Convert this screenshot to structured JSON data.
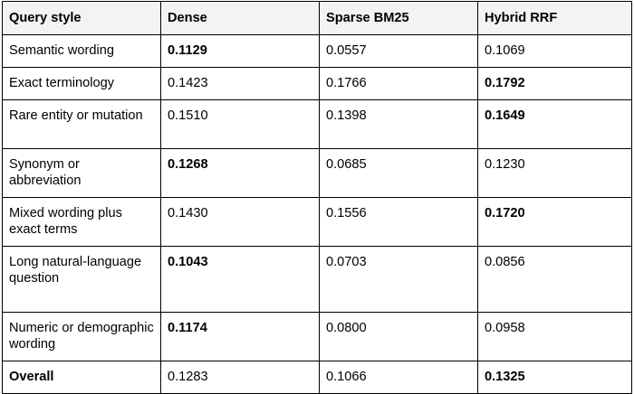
{
  "table": {
    "headers": [
      "Query style",
      "Dense",
      "Sparse BM25",
      "Hybrid RRF"
    ],
    "rows": [
      {
        "style": "Semantic wording",
        "dense": "0.1129",
        "sparse": "0.0557",
        "hybrid": "0.1069",
        "best": "dense"
      },
      {
        "style": "Exact terminology",
        "dense": "0.1423",
        "sparse": "0.1766",
        "hybrid": "0.1792",
        "best": "hybrid"
      },
      {
        "style": "Rare entity or mutation",
        "dense": "0.1510",
        "sparse": "0.1398",
        "hybrid": "0.1649",
        "best": "hybrid"
      },
      {
        "style": "Synonym or abbreviation",
        "dense": "0.1268",
        "sparse": "0.0685",
        "hybrid": "0.1230",
        "best": "dense"
      },
      {
        "style": "Mixed wording plus exact terms",
        "dense": "0.1430",
        "sparse": "0.1556",
        "hybrid": "0.1720",
        "best": "hybrid"
      },
      {
        "style": "Long natural-language question",
        "dense": "0.1043",
        "sparse": "0.0703",
        "hybrid": "0.0856",
        "best": "dense"
      },
      {
        "style": "Numeric or demographic wording",
        "dense": "0.1174",
        "sparse": "0.0800",
        "hybrid": "0.0958",
        "best": "dense"
      },
      {
        "style": "Overall",
        "dense": "0.1283",
        "sparse": "0.1066",
        "hybrid": "0.1325",
        "best": "hybrid"
      }
    ]
  }
}
